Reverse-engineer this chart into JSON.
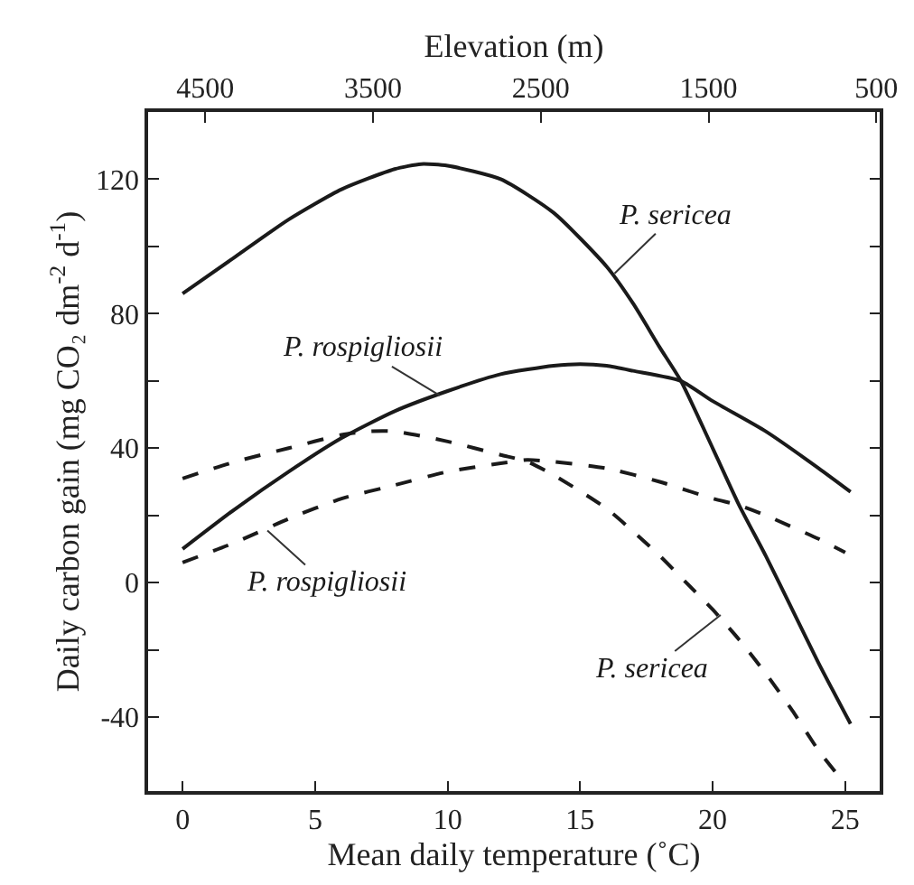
{
  "chart_data": {
    "type": "line",
    "xlabel": "Mean daily temperature (˚C)",
    "ylabel": "Daily carbon gain (mg CO₂ dm$^{-2}$ d$^{-1}$)",
    "x2label": "Elevation (m)",
    "xlim": [
      -1.3,
      26.3
    ],
    "xticks": [
      0,
      5,
      10,
      15,
      20,
      25
    ],
    "x2lim": [
      4840,
      480
    ],
    "x2ticks": [
      4500,
      3500,
      2500,
      1500,
      500
    ],
    "ylim": [
      -62,
      140
    ],
    "yticks": [
      -40,
      {
        "value": -20,
        "label": null
      },
      0,
      {
        "value": 20,
        "label": null
      },
      40,
      {
        "value": 60,
        "label": null
      },
      80,
      {
        "value": 100,
        "label": null
      },
      120
    ],
    "marker": "none",
    "series": [
      {
        "color": "#1a1a1a",
        "line_style": "solid",
        "x": [
          0,
          2,
          4,
          6,
          8,
          9,
          10,
          12,
          14,
          16,
          17,
          18,
          18.8,
          20,
          21,
          22,
          23,
          24,
          25.2
        ],
        "values": [
          86,
          97,
          108,
          117,
          123,
          124.5,
          124,
          120,
          110,
          94,
          83,
          70,
          60,
          40,
          23,
          8,
          -8,
          -24,
          -42
        ]
      },
      {
        "color": "#1a1a1a",
        "line_style": "solid",
        "x": [
          0,
          2,
          4,
          6,
          8,
          10,
          12,
          14,
          15,
          16,
          17,
          18.8,
          20,
          22,
          24,
          25.2
        ],
        "values": [
          10,
          22,
          33,
          43,
          51,
          57,
          62,
          64.5,
          65,
          64.5,
          63,
          60,
          54,
          45,
          34,
          27
        ]
      },
      {
        "color": "#1a1a1a",
        "line_style": "dashed",
        "x": [
          0,
          2,
          4,
          6,
          7,
          8,
          10,
          12,
          13,
          14,
          16,
          18,
          19,
          20,
          21,
          22,
          23,
          24,
          24.7
        ],
        "values": [
          31,
          36,
          40,
          44,
          45,
          45,
          42,
          38,
          36,
          32,
          22,
          8,
          0,
          -8,
          -17,
          -27,
          -38,
          -50,
          -57
        ]
      },
      {
        "color": "#1a1a1a",
        "line_style": "dashed",
        "x": [
          0,
          2,
          4,
          6,
          8,
          10,
          12,
          13,
          14,
          16,
          18,
          20,
          21,
          22,
          24,
          25
        ],
        "values": [
          6,
          12,
          19,
          25,
          29,
          33,
          35.5,
          36.5,
          36,
          34,
          30,
          25,
          23,
          20,
          13,
          9
        ]
      }
    ],
    "annotations": [
      {
        "text": "P. sericea",
        "x": 16.3,
        "y": 92
      },
      {
        "text": "P. rospigliosii",
        "x": 9.7,
        "y": 55.7
      },
      {
        "text": "P. rospigliosii",
        "x": 3.2,
        "y": 15.5
      },
      {
        "text": "P. sericea",
        "x": 20.3,
        "y": -9.6
      }
    ]
  }
}
